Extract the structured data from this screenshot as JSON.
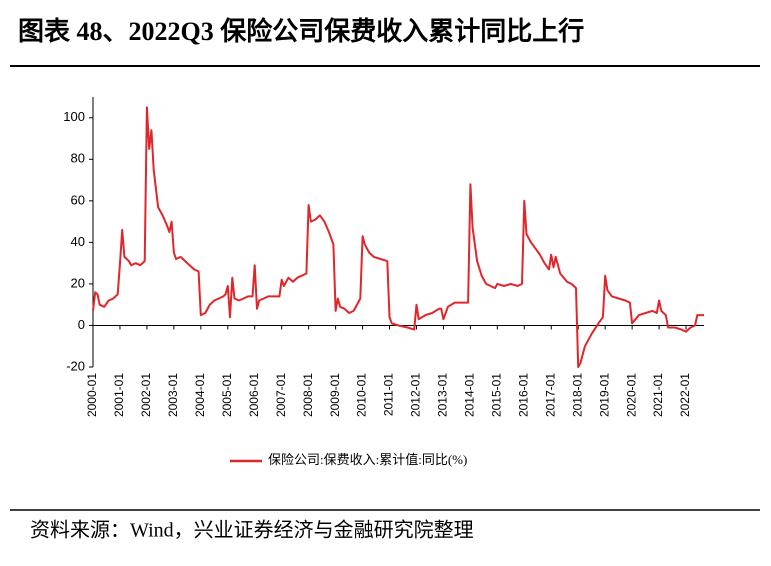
{
  "chart_data": {
    "type": "line",
    "title": "图表 48、2022Q3 保险公司保费收入累计同比上行",
    "source": "资料来源：Wind，兴业证券经济与金融研究院整理",
    "x": [
      "2000-01",
      "2000-02",
      "2000-03",
      "2000-04",
      "2000-06",
      "2000-08",
      "2000-10",
      "2000-12",
      "2001-01",
      "2001-02",
      "2001-03",
      "2001-05",
      "2001-06",
      "2001-08",
      "2001-10",
      "2001-12",
      "2002-01",
      "2002-02",
      "2002-03",
      "2002-04",
      "2002-06",
      "2002-08",
      "2002-10",
      "2002-11",
      "2002-12",
      "2003-01",
      "2003-02",
      "2003-04",
      "2003-06",
      "2003-08",
      "2003-10",
      "2003-12",
      "2004-01",
      "2004-03",
      "2004-05",
      "2004-07",
      "2004-09",
      "2004-11",
      "2004-12",
      "2005-01",
      "2005-02",
      "2005-03",
      "2005-04",
      "2005-06",
      "2005-08",
      "2005-10",
      "2005-12",
      "2006-01",
      "2006-02",
      "2006-03",
      "2006-05",
      "2006-07",
      "2006-09",
      "2006-12",
      "2007-01",
      "2007-02",
      "2007-04",
      "2007-06",
      "2007-08",
      "2007-10",
      "2007-12",
      "2008-01",
      "2008-02",
      "2008-04",
      "2008-06",
      "2008-08",
      "2008-10",
      "2008-12",
      "2009-01",
      "2009-02",
      "2009-03",
      "2009-05",
      "2009-07",
      "2009-09",
      "2009-11",
      "2009-12",
      "2010-01",
      "2010-02",
      "2010-04",
      "2010-06",
      "2010-09",
      "2010-12",
      "2011-01",
      "2011-02",
      "2011-05",
      "2011-09",
      "2011-12",
      "2012-01",
      "2012-02",
      "2012-05",
      "2012-08",
      "2012-11",
      "2012-12",
      "2013-01",
      "2013-03",
      "2013-06",
      "2013-09",
      "2013-12",
      "2014-01",
      "2014-02",
      "2014-04",
      "2014-06",
      "2014-08",
      "2014-10",
      "2014-12",
      "2015-01",
      "2015-04",
      "2015-07",
      "2015-10",
      "2015-12",
      "2016-01",
      "2016-02",
      "2016-04",
      "2016-06",
      "2016-08",
      "2016-10",
      "2016-12",
      "2017-01",
      "2017-02",
      "2017-03",
      "2017-05",
      "2017-08",
      "2017-10",
      "2017-12",
      "2018-01",
      "2018-02",
      "2018-04",
      "2018-07",
      "2018-10",
      "2018-12",
      "2019-01",
      "2019-02",
      "2019-04",
      "2019-07",
      "2019-10",
      "2019-12",
      "2020-01",
      "2020-04",
      "2020-07",
      "2020-10",
      "2020-12",
      "2021-01",
      "2021-02",
      "2021-04",
      "2021-05",
      "2021-08",
      "2021-11",
      "2022-01",
      "2022-03",
      "2022-05",
      "2022-06",
      "2022-09"
    ],
    "series": [
      {
        "name": "保险公司:保费收入:累计值:同比(%)",
        "color": "#e0262b",
        "values": [
          7,
          16,
          15,
          10,
          9,
          12,
          13,
          15,
          30,
          46,
          33,
          31,
          29,
          30,
          29,
          31,
          105,
          85,
          94,
          75,
          57,
          53,
          48,
          45,
          50,
          35,
          32,
          33,
          31,
          29,
          27,
          26,
          5,
          6,
          10,
          12,
          13,
          14,
          15,
          19,
          4,
          23,
          13,
          12,
          13,
          14,
          14,
          29,
          8,
          12,
          13,
          14,
          14,
          14,
          22,
          19,
          23,
          21,
          23,
          24,
          25,
          58,
          50,
          51,
          53,
          50,
          45,
          39,
          7,
          13,
          9,
          8,
          6,
          7,
          11,
          13,
          43,
          39,
          35,
          33,
          32,
          31,
          4,
          1,
          0,
          -1,
          -2,
          10,
          3,
          5,
          6,
          8,
          8,
          3,
          9,
          11,
          11,
          11,
          68,
          47,
          31,
          24,
          20,
          19,
          18,
          20,
          19,
          20,
          19,
          20,
          60,
          44,
          40,
          37,
          34,
          30,
          27,
          34,
          28,
          33,
          25,
          21,
          20,
          18,
          -20,
          -18,
          -10,
          -4,
          1,
          4,
          24,
          17,
          14,
          13,
          12,
          11,
          1,
          5,
          6,
          7,
          6,
          12,
          7,
          5,
          -1,
          -1,
          -2,
          -3,
          -1,
          0,
          5,
          5
        ]
      }
    ],
    "xlim": [
      "2000-01",
      "2022-09"
    ],
    "xticks": [
      "2000-01",
      "2001-01",
      "2002-01",
      "2003-01",
      "2004-01",
      "2005-01",
      "2006-01",
      "2007-01",
      "2008-01",
      "2009-01",
      "2010-01",
      "2011-01",
      "2012-01",
      "2013-01",
      "2014-01",
      "2015-01",
      "2016-01",
      "2017-01",
      "2018-01",
      "2019-01",
      "2020-01",
      "2021-01",
      "2022-01"
    ],
    "ylim": [
      -20,
      110
    ],
    "yticks": [
      -20,
      0,
      20,
      40,
      60,
      80,
      100
    ],
    "legend": "bottom"
  }
}
